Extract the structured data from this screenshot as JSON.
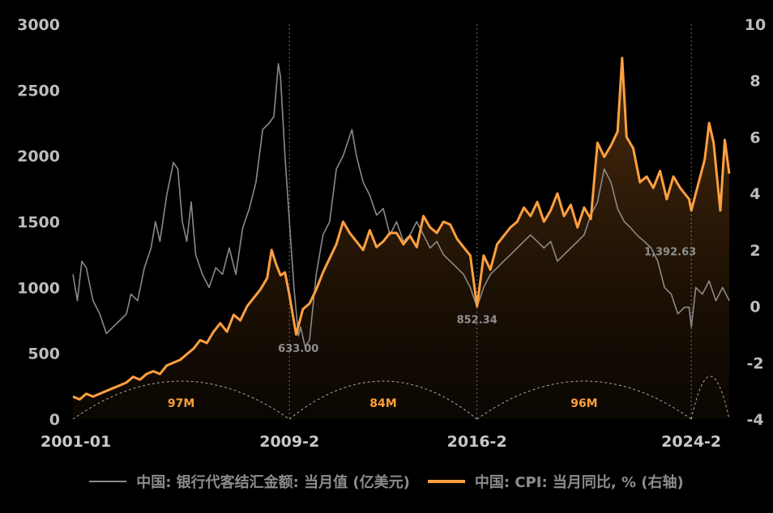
{
  "chart_data": {
    "type": "line",
    "dual_axis": true,
    "left_axis": {
      "ylim": [
        0,
        3000
      ],
      "ticks": [
        "0",
        "500",
        "1000",
        "1500",
        "2000",
        "2500",
        "3000"
      ]
    },
    "right_axis": {
      "ylim": [
        -4,
        10
      ],
      "ticks": [
        "-4",
        "-2",
        "0",
        "2",
        "4",
        "6",
        "8",
        "10"
      ]
    },
    "x_range": [
      "2001-01",
      "2025-07"
    ],
    "x_ticks": [
      "2001-01",
      "2009-2",
      "2016-2",
      "2024-2"
    ],
    "grid": false,
    "legend_position": "bottom",
    "series": [
      {
        "name": "中国: 银行代客结汇金额: 当月值 (亿美元)",
        "axis": "left",
        "color": "#8a8a8a",
        "points": [
          [
            "2001-01",
            1100
          ],
          [
            "2001-03",
            900
          ],
          [
            "2001-05",
            1200
          ],
          [
            "2001-07",
            1150
          ],
          [
            "2001-10",
            900
          ],
          [
            "2002-01",
            800
          ],
          [
            "2002-04",
            650
          ],
          [
            "2002-07",
            700
          ],
          [
            "2002-10",
            750
          ],
          [
            "2003-01",
            800
          ],
          [
            "2003-03",
            950
          ],
          [
            "2003-06",
            900
          ],
          [
            "2003-09",
            1150
          ],
          [
            "2003-12",
            1300
          ],
          [
            "2004-02",
            1500
          ],
          [
            "2004-04",
            1350
          ],
          [
            "2004-07",
            1700
          ],
          [
            "2004-10",
            1950
          ],
          [
            "2004-12",
            1900
          ],
          [
            "2005-02",
            1500
          ],
          [
            "2005-04",
            1350
          ],
          [
            "2005-06",
            1650
          ],
          [
            "2005-08",
            1250
          ],
          [
            "2005-11",
            1100
          ],
          [
            "2006-02",
            1000
          ],
          [
            "2006-05",
            1150
          ],
          [
            "2006-08",
            1100
          ],
          [
            "2006-11",
            1300
          ],
          [
            "2007-02",
            1100
          ],
          [
            "2007-05",
            1450
          ],
          [
            "2007-08",
            1600
          ],
          [
            "2007-11",
            1800
          ],
          [
            "2008-02",
            2200
          ],
          [
            "2008-05",
            2250
          ],
          [
            "2008-07",
            2300
          ],
          [
            "2008-09",
            2700
          ],
          [
            "2008-10",
            2600
          ],
          [
            "2008-12",
            2000
          ],
          [
            "2009-02",
            1500
          ],
          [
            "2009-04",
            1000
          ],
          [
            "2009-06",
            633
          ],
          [
            "2009-07",
            700
          ],
          [
            "2009-09",
            550
          ],
          [
            "2009-11",
            600
          ],
          [
            "2010-02",
            1100
          ],
          [
            "2010-05",
            1400
          ],
          [
            "2010-08",
            1500
          ],
          [
            "2010-11",
            1900
          ],
          [
            "2011-02",
            2000
          ],
          [
            "2011-04",
            2100
          ],
          [
            "2011-06",
            2200
          ],
          [
            "2011-08",
            2000
          ],
          [
            "2011-11",
            1800
          ],
          [
            "2012-02",
            1700
          ],
          [
            "2012-05",
            1550
          ],
          [
            "2012-08",
            1600
          ],
          [
            "2012-11",
            1400
          ],
          [
            "2013-02",
            1500
          ],
          [
            "2013-05",
            1350
          ],
          [
            "2013-08",
            1400
          ],
          [
            "2013-11",
            1500
          ],
          [
            "2014-02",
            1400
          ],
          [
            "2014-05",
            1300
          ],
          [
            "2014-08",
            1350
          ],
          [
            "2014-11",
            1250
          ],
          [
            "2015-02",
            1200
          ],
          [
            "2015-05",
            1150
          ],
          [
            "2015-08",
            1100
          ],
          [
            "2015-11",
            1000
          ],
          [
            "2016-02",
            852.34
          ],
          [
            "2016-05",
            1000
          ],
          [
            "2016-08",
            1100
          ],
          [
            "2016-11",
            1150
          ],
          [
            "2017-02",
            1200
          ],
          [
            "2017-05",
            1250
          ],
          [
            "2017-08",
            1300
          ],
          [
            "2017-11",
            1350
          ],
          [
            "2018-02",
            1400
          ],
          [
            "2018-05",
            1350
          ],
          [
            "2018-08",
            1300
          ],
          [
            "2018-11",
            1350
          ],
          [
            "2019-02",
            1200
          ],
          [
            "2019-05",
            1250
          ],
          [
            "2019-08",
            1300
          ],
          [
            "2019-11",
            1350
          ],
          [
            "2020-02",
            1400
          ],
          [
            "2020-05",
            1550
          ],
          [
            "2020-08",
            1650
          ],
          [
            "2020-11",
            1900
          ],
          [
            "2021-02",
            1800
          ],
          [
            "2021-05",
            1600
          ],
          [
            "2021-08",
            1500
          ],
          [
            "2021-11",
            1450
          ],
          [
            "2022-02",
            1392.63
          ],
          [
            "2022-05",
            1350
          ],
          [
            "2022-08",
            1300
          ],
          [
            "2022-11",
            1200
          ],
          [
            "2023-02",
            1000
          ],
          [
            "2023-05",
            950
          ],
          [
            "2023-08",
            800
          ],
          [
            "2023-11",
            850
          ],
          [
            "2024-01",
            850
          ],
          [
            "2024-02",
            700
          ],
          [
            "2024-04",
            1000
          ],
          [
            "2024-07",
            950
          ],
          [
            "2024-10",
            1050
          ],
          [
            "2025-01",
            900
          ],
          [
            "2025-04",
            1000
          ],
          [
            "2025-07",
            900
          ]
        ]
      },
      {
        "name": "中国: CPI: 当月同比, % (右轴)",
        "axis": "right",
        "color": "#ffa040",
        "points": [
          [
            "2001-01",
            -3.2
          ],
          [
            "2001-04",
            -3.3
          ],
          [
            "2001-07",
            -3.1
          ],
          [
            "2001-10",
            -3.2
          ],
          [
            "2002-01",
            -3.1
          ],
          [
            "2002-04",
            -3.0
          ],
          [
            "2002-07",
            -2.9
          ],
          [
            "2002-10",
            -2.8
          ],
          [
            "2003-01",
            -2.7
          ],
          [
            "2003-04",
            -2.5
          ],
          [
            "2003-07",
            -2.6
          ],
          [
            "2003-10",
            -2.4
          ],
          [
            "2004-01",
            -2.3
          ],
          [
            "2004-04",
            -2.4
          ],
          [
            "2004-07",
            -2.1
          ],
          [
            "2004-10",
            -2.0
          ],
          [
            "2005-01",
            -1.9
          ],
          [
            "2005-04",
            -1.7
          ],
          [
            "2005-07",
            -1.5
          ],
          [
            "2005-10",
            -1.2
          ],
          [
            "2006-01",
            -1.3
          ],
          [
            "2006-04",
            -0.9
          ],
          [
            "2006-07",
            -0.6
          ],
          [
            "2006-10",
            -0.9
          ],
          [
            "2007-01",
            -0.3
          ],
          [
            "2007-04",
            -0.5
          ],
          [
            "2007-07",
            0.0
          ],
          [
            "2007-10",
            0.3
          ],
          [
            "2008-01",
            0.6
          ],
          [
            "2008-04",
            1.0
          ],
          [
            "2008-06",
            2.0
          ],
          [
            "2008-08",
            1.5
          ],
          [
            "2008-10",
            1.1
          ],
          [
            "2008-12",
            1.2
          ],
          [
            "2009-02",
            0.4
          ],
          [
            "2009-05",
            -1.0
          ],
          [
            "2009-08",
            -0.1
          ],
          [
            "2009-11",
            0.1
          ],
          [
            "2010-02",
            0.6
          ],
          [
            "2010-05",
            1.2
          ],
          [
            "2010-08",
            1.7
          ],
          [
            "2010-11",
            2.2
          ],
          [
            "2011-02",
            3.0
          ],
          [
            "2011-05",
            2.6
          ],
          [
            "2011-08",
            2.3
          ],
          [
            "2011-11",
            2.0
          ],
          [
            "2012-02",
            2.7
          ],
          [
            "2012-05",
            2.1
          ],
          [
            "2012-08",
            2.3
          ],
          [
            "2012-11",
            2.6
          ],
          [
            "2013-02",
            2.6
          ],
          [
            "2013-05",
            2.2
          ],
          [
            "2013-08",
            2.5
          ],
          [
            "2013-11",
            2.1
          ],
          [
            "2014-02",
            3.2
          ],
          [
            "2014-05",
            2.8
          ],
          [
            "2014-08",
            2.6
          ],
          [
            "2014-11",
            3.0
          ],
          [
            "2015-02",
            2.9
          ],
          [
            "2015-05",
            2.4
          ],
          [
            "2015-08",
            2.1
          ],
          [
            "2015-11",
            1.8
          ],
          [
            "2016-02",
            0.0
          ],
          [
            "2016-05",
            1.8
          ],
          [
            "2016-08",
            1.3
          ],
          [
            "2016-11",
            2.2
          ],
          [
            "2017-02",
            2.5
          ],
          [
            "2017-05",
            2.8
          ],
          [
            "2017-08",
            3.0
          ],
          [
            "2017-11",
            3.5
          ],
          [
            "2018-02",
            3.2
          ],
          [
            "2018-05",
            3.7
          ],
          [
            "2018-08",
            3.0
          ],
          [
            "2018-11",
            3.4
          ],
          [
            "2019-02",
            4.0
          ],
          [
            "2019-05",
            3.2
          ],
          [
            "2019-08",
            3.6
          ],
          [
            "2019-11",
            2.8
          ],
          [
            "2020-02",
            3.5
          ],
          [
            "2020-05",
            3.1
          ],
          [
            "2020-08",
            5.8
          ],
          [
            "2020-11",
            5.3
          ],
          [
            "2021-02",
            5.7
          ],
          [
            "2021-05",
            6.2
          ],
          [
            "2021-07",
            8.8
          ],
          [
            "2021-09",
            6.0
          ],
          [
            "2021-12",
            5.6
          ],
          [
            "2022-03",
            4.4
          ],
          [
            "2022-06",
            4.6
          ],
          [
            "2022-09",
            4.2
          ],
          [
            "2022-12",
            4.8
          ],
          [
            "2023-03",
            3.8
          ],
          [
            "2023-06",
            4.6
          ],
          [
            "2023-09",
            4.2
          ],
          [
            "2024-01",
            3.8
          ],
          [
            "2024-02",
            3.4
          ],
          [
            "2024-05",
            4.3
          ],
          [
            "2024-08",
            5.2
          ],
          [
            "2024-10",
            6.5
          ],
          [
            "2024-12",
            5.8
          ],
          [
            "2025-03",
            3.4
          ],
          [
            "2025-05",
            5.9
          ],
          [
            "2025-07",
            4.7
          ]
        ]
      }
    ],
    "annotations": [
      {
        "label": "633.00",
        "x": "2009-06",
        "value": 633,
        "axis": "left"
      },
      {
        "label": "852.34",
        "x": "2016-02",
        "value": 852.34,
        "axis": "left"
      },
      {
        "label": "1,392.63",
        "x": "2022-02",
        "value": 1392.63,
        "axis": "left"
      }
    ],
    "vertical_markers": [
      "2009-2",
      "2016-2",
      "2024-2"
    ],
    "cycles": [
      {
        "label": "97M",
        "start": "2001-01",
        "end": "2009-02"
      },
      {
        "label": "84M",
        "start": "2009-02",
        "end": "2016-02"
      },
      {
        "label": "96M",
        "start": "2016-02",
        "end": "2024-02"
      },
      {
        "label": "",
        "start": "2024-02",
        "end": "2025-07"
      }
    ]
  },
  "legend": {
    "series_1": "中国: 银行代客结汇金额: 当月值 (亿美元)",
    "series_2": "中国: CPI: 当月同比, % (右轴)"
  }
}
